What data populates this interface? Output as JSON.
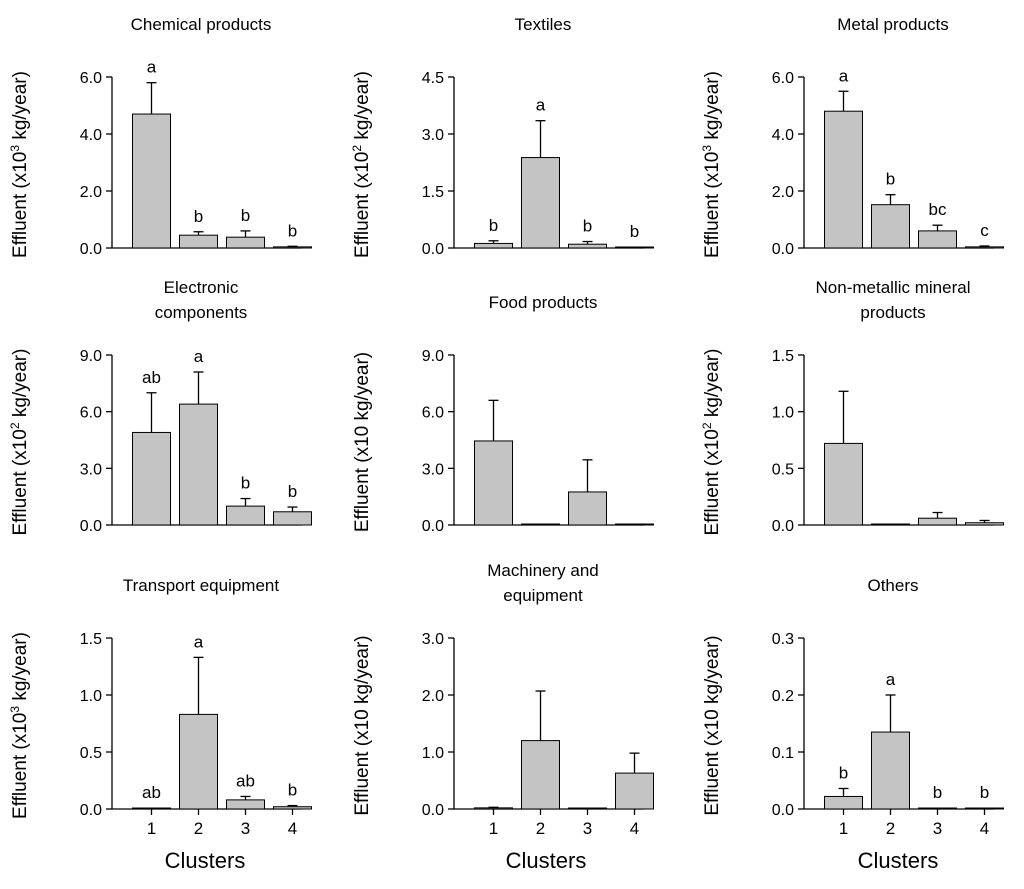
{
  "figure": {
    "xlabel": "Clusters",
    "categories": [
      "1",
      "2",
      "3",
      "4"
    ]
  },
  "chart_data": [
    {
      "type": "bar",
      "title": "Chemical products",
      "title_lines": [
        "Chemical products"
      ],
      "ylabel_prefix": "Effluent (x10",
      "ylabel_sup": "3",
      "ylabel_suffix": " kg/year)",
      "categories": [
        "1",
        "2",
        "3",
        "4"
      ],
      "values": [
        4.7,
        0.45,
        0.38,
        0.04
      ],
      "errors": [
        1.1,
        0.12,
        0.22,
        0.02
      ],
      "letters": [
        "a",
        "b",
        "b",
        "b"
      ],
      "ylim": [
        0,
        6.0
      ],
      "yticks": [
        "0.0",
        "2.0",
        "4.0",
        "6.0"
      ],
      "show_xticks": false
    },
    {
      "type": "bar",
      "title": "Textiles",
      "title_lines": [
        "Textiles"
      ],
      "ylabel_prefix": "Effluent (x10",
      "ylabel_sup": "2",
      "ylabel_suffix": " kg/year)",
      "categories": [
        "1",
        "2",
        "3",
        "4"
      ],
      "values": [
        0.12,
        2.38,
        0.1,
        0.0
      ],
      "errors": [
        0.07,
        0.97,
        0.07,
        0.0
      ],
      "letters": [
        "b",
        "a",
        "b",
        "b"
      ],
      "ylim": [
        0,
        4.5
      ],
      "yticks": [
        "0.0",
        "1.5",
        "3.0",
        "4.5"
      ],
      "show_xticks": false
    },
    {
      "type": "bar",
      "title": "Metal products",
      "title_lines": [
        "Metal products"
      ],
      "ylabel_prefix": "Effluent (x10",
      "ylabel_sup": "3",
      "ylabel_suffix": " kg/year)",
      "categories": [
        "1",
        "2",
        "3",
        "4"
      ],
      "values": [
        4.8,
        1.52,
        0.6,
        0.04
      ],
      "errors": [
        0.7,
        0.35,
        0.2,
        0.03
      ],
      "letters": [
        "a",
        "b",
        "bc",
        "c"
      ],
      "ylim": [
        0,
        6.0
      ],
      "yticks": [
        "0.0",
        "2.0",
        "4.0",
        "6.0"
      ],
      "show_xticks": false
    },
    {
      "type": "bar",
      "title": "Electronic components",
      "title_lines": [
        "Electronic",
        "components"
      ],
      "ylabel_prefix": "Effluent (x10",
      "ylabel_sup": "2",
      "ylabel_suffix": " kg/year)",
      "categories": [
        "1",
        "2",
        "3",
        "4"
      ],
      "values": [
        4.9,
        6.4,
        1.0,
        0.7
      ],
      "errors": [
        2.1,
        1.7,
        0.4,
        0.25
      ],
      "letters": [
        "ab",
        "a",
        "b",
        "b"
      ],
      "ylim": [
        0,
        9.0
      ],
      "yticks": [
        "0.0",
        "3.0",
        "6.0",
        "9.0"
      ],
      "show_xticks": false
    },
    {
      "type": "bar",
      "title": "Food products",
      "title_lines": [
        "Food products"
      ],
      "ylabel_prefix": "Effluent (x10 kg/year)",
      "ylabel_sup": "",
      "ylabel_suffix": "",
      "categories": [
        "1",
        "2",
        "3",
        "4"
      ],
      "values": [
        4.45,
        0.0,
        1.75,
        0.0
      ],
      "errors": [
        2.15,
        0.0,
        1.7,
        0.0
      ],
      "letters": [
        "",
        "",
        "",
        ""
      ],
      "ylim": [
        0,
        9.0
      ],
      "yticks": [
        "0.0",
        "3.0",
        "6.0",
        "9.0"
      ],
      "show_xticks": false
    },
    {
      "type": "bar",
      "title": "Non-metallic mineral products",
      "title_lines": [
        "Non-metallic mineral",
        "products"
      ],
      "ylabel_prefix": "Effluent (x10",
      "ylabel_sup": "2",
      "ylabel_suffix": " kg/year)",
      "categories": [
        "1",
        "2",
        "3",
        "4"
      ],
      "values": [
        0.72,
        0.0,
        0.06,
        0.02
      ],
      "errors": [
        0.46,
        0.0,
        0.05,
        0.02
      ],
      "letters": [
        "",
        "",
        "",
        ""
      ],
      "ylim": [
        0,
        1.5
      ],
      "yticks": [
        "0.0",
        "0.5",
        "1.0",
        "1.5"
      ],
      "show_xticks": false
    },
    {
      "type": "bar",
      "title": "Transport equipment",
      "title_lines": [
        "Transport equipment"
      ],
      "ylabel_prefix": "Effluent (x10",
      "ylabel_sup": "3",
      "ylabel_suffix": " kg/year)",
      "categories": [
        "1",
        "2",
        "3",
        "4"
      ],
      "values": [
        0.0,
        0.83,
        0.08,
        0.02
      ],
      "errors": [
        0.0,
        0.5,
        0.03,
        0.01
      ],
      "letters": [
        "ab",
        "a",
        "ab",
        "b"
      ],
      "ylim": [
        0,
        1.5
      ],
      "yticks": [
        "0.0",
        "0.5",
        "1.0",
        "1.5"
      ],
      "show_xticks": true
    },
    {
      "type": "bar",
      "title": "Machinery and equipment",
      "title_lines": [
        "Machinery and",
        "equipment"
      ],
      "ylabel_prefix": "Effluent (x10 kg/year)",
      "ylabel_sup": "",
      "ylabel_suffix": "",
      "categories": [
        "1",
        "2",
        "3",
        "4"
      ],
      "values": [
        0.02,
        1.2,
        0.0,
        0.63
      ],
      "errors": [
        0.01,
        0.87,
        0.0,
        0.35
      ],
      "letters": [
        "",
        "",
        "",
        ""
      ],
      "ylim": [
        0,
        3.0
      ],
      "yticks": [
        "0.0",
        "1.0",
        "2.0",
        "3.0"
      ],
      "show_xticks": true
    },
    {
      "type": "bar",
      "title": "Others",
      "title_lines": [
        "Others"
      ],
      "ylabel_prefix": "Effluent (x10 kg/year)",
      "ylabel_sup": "",
      "ylabel_suffix": "",
      "categories": [
        "1",
        "2",
        "3",
        "4"
      ],
      "values": [
        0.022,
        0.135,
        0.0,
        0.0
      ],
      "errors": [
        0.014,
        0.065,
        0.0,
        0.0
      ],
      "letters": [
        "b",
        "a",
        "b",
        "b"
      ],
      "ylim": [
        0,
        0.3
      ],
      "yticks": [
        "0.0",
        "0.1",
        "0.2",
        "0.3"
      ],
      "show_xticks": true
    }
  ]
}
